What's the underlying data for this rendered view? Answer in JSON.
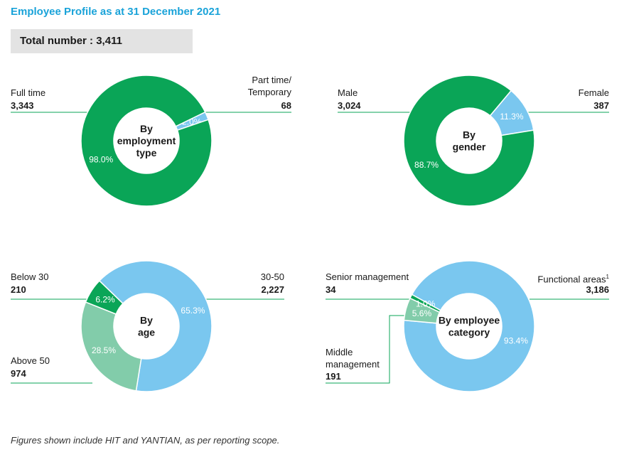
{
  "title": "Employee Profile as at 31 December 2021",
  "total_label": "Total number : 3,411",
  "footnote": "Figures shown include HIT and YANTIAN, as per reporting scope.",
  "colors": {
    "dark_green": "#0aa557",
    "light_green": "#82ccaa",
    "light_blue": "#7ac7ef",
    "line_green": "#0aa557",
    "title_blue": "#1aa3d9"
  },
  "chart_data": [
    {
      "type": "pie",
      "center_label": [
        "By",
        "employment",
        "type"
      ],
      "slices": [
        {
          "name": "Full time",
          "value": 3343,
          "percent": 98.0,
          "percent_label": "98.0%",
          "value_label": "3,343",
          "color": "#0aa557"
        },
        {
          "name": "Part time/ Temporary",
          "value": 68,
          "percent": 2.0,
          "percent_label": "2.0%",
          "value_label": "68",
          "color": "#7ac7ef"
        }
      ]
    },
    {
      "type": "pie",
      "center_label": [
        "By",
        "gender"
      ],
      "slices": [
        {
          "name": "Male",
          "value": 3024,
          "percent": 88.7,
          "percent_label": "88.7%",
          "value_label": "3,024",
          "color": "#0aa557"
        },
        {
          "name": "Female",
          "value": 387,
          "percent": 11.3,
          "percent_label": "11.3%",
          "value_label": "387",
          "color": "#7ac7ef"
        }
      ]
    },
    {
      "type": "pie",
      "center_label": [
        "By",
        "age"
      ],
      "slices": [
        {
          "name": "30-50",
          "value": 2227,
          "percent": 65.3,
          "percent_label": "65.3%",
          "value_label": "2,227",
          "color": "#7ac7ef"
        },
        {
          "name": "Above 50",
          "value": 974,
          "percent": 28.5,
          "percent_label": "28.5%",
          "value_label": "974",
          "color": "#82ccaa"
        },
        {
          "name": "Below 30",
          "value": 210,
          "percent": 6.2,
          "percent_label": "6.2%",
          "value_label": "210",
          "color": "#0aa557"
        }
      ]
    },
    {
      "type": "pie",
      "center_label": [
        "By employee",
        "category"
      ],
      "slices": [
        {
          "name": "Functional areas",
          "value": 3186,
          "percent": 93.4,
          "percent_label": "93.4%",
          "value_label": "3,186",
          "color": "#7ac7ef",
          "note_marker": "1"
        },
        {
          "name": "Middle management",
          "value": 191,
          "percent": 5.6,
          "percent_label": "5.6%",
          "value_label": "191",
          "color": "#82ccaa"
        },
        {
          "name": "Senior management",
          "value": 34,
          "percent": 1.0,
          "percent_label": "1.0%",
          "value_label": "34",
          "color": "#0aa557"
        }
      ]
    }
  ]
}
